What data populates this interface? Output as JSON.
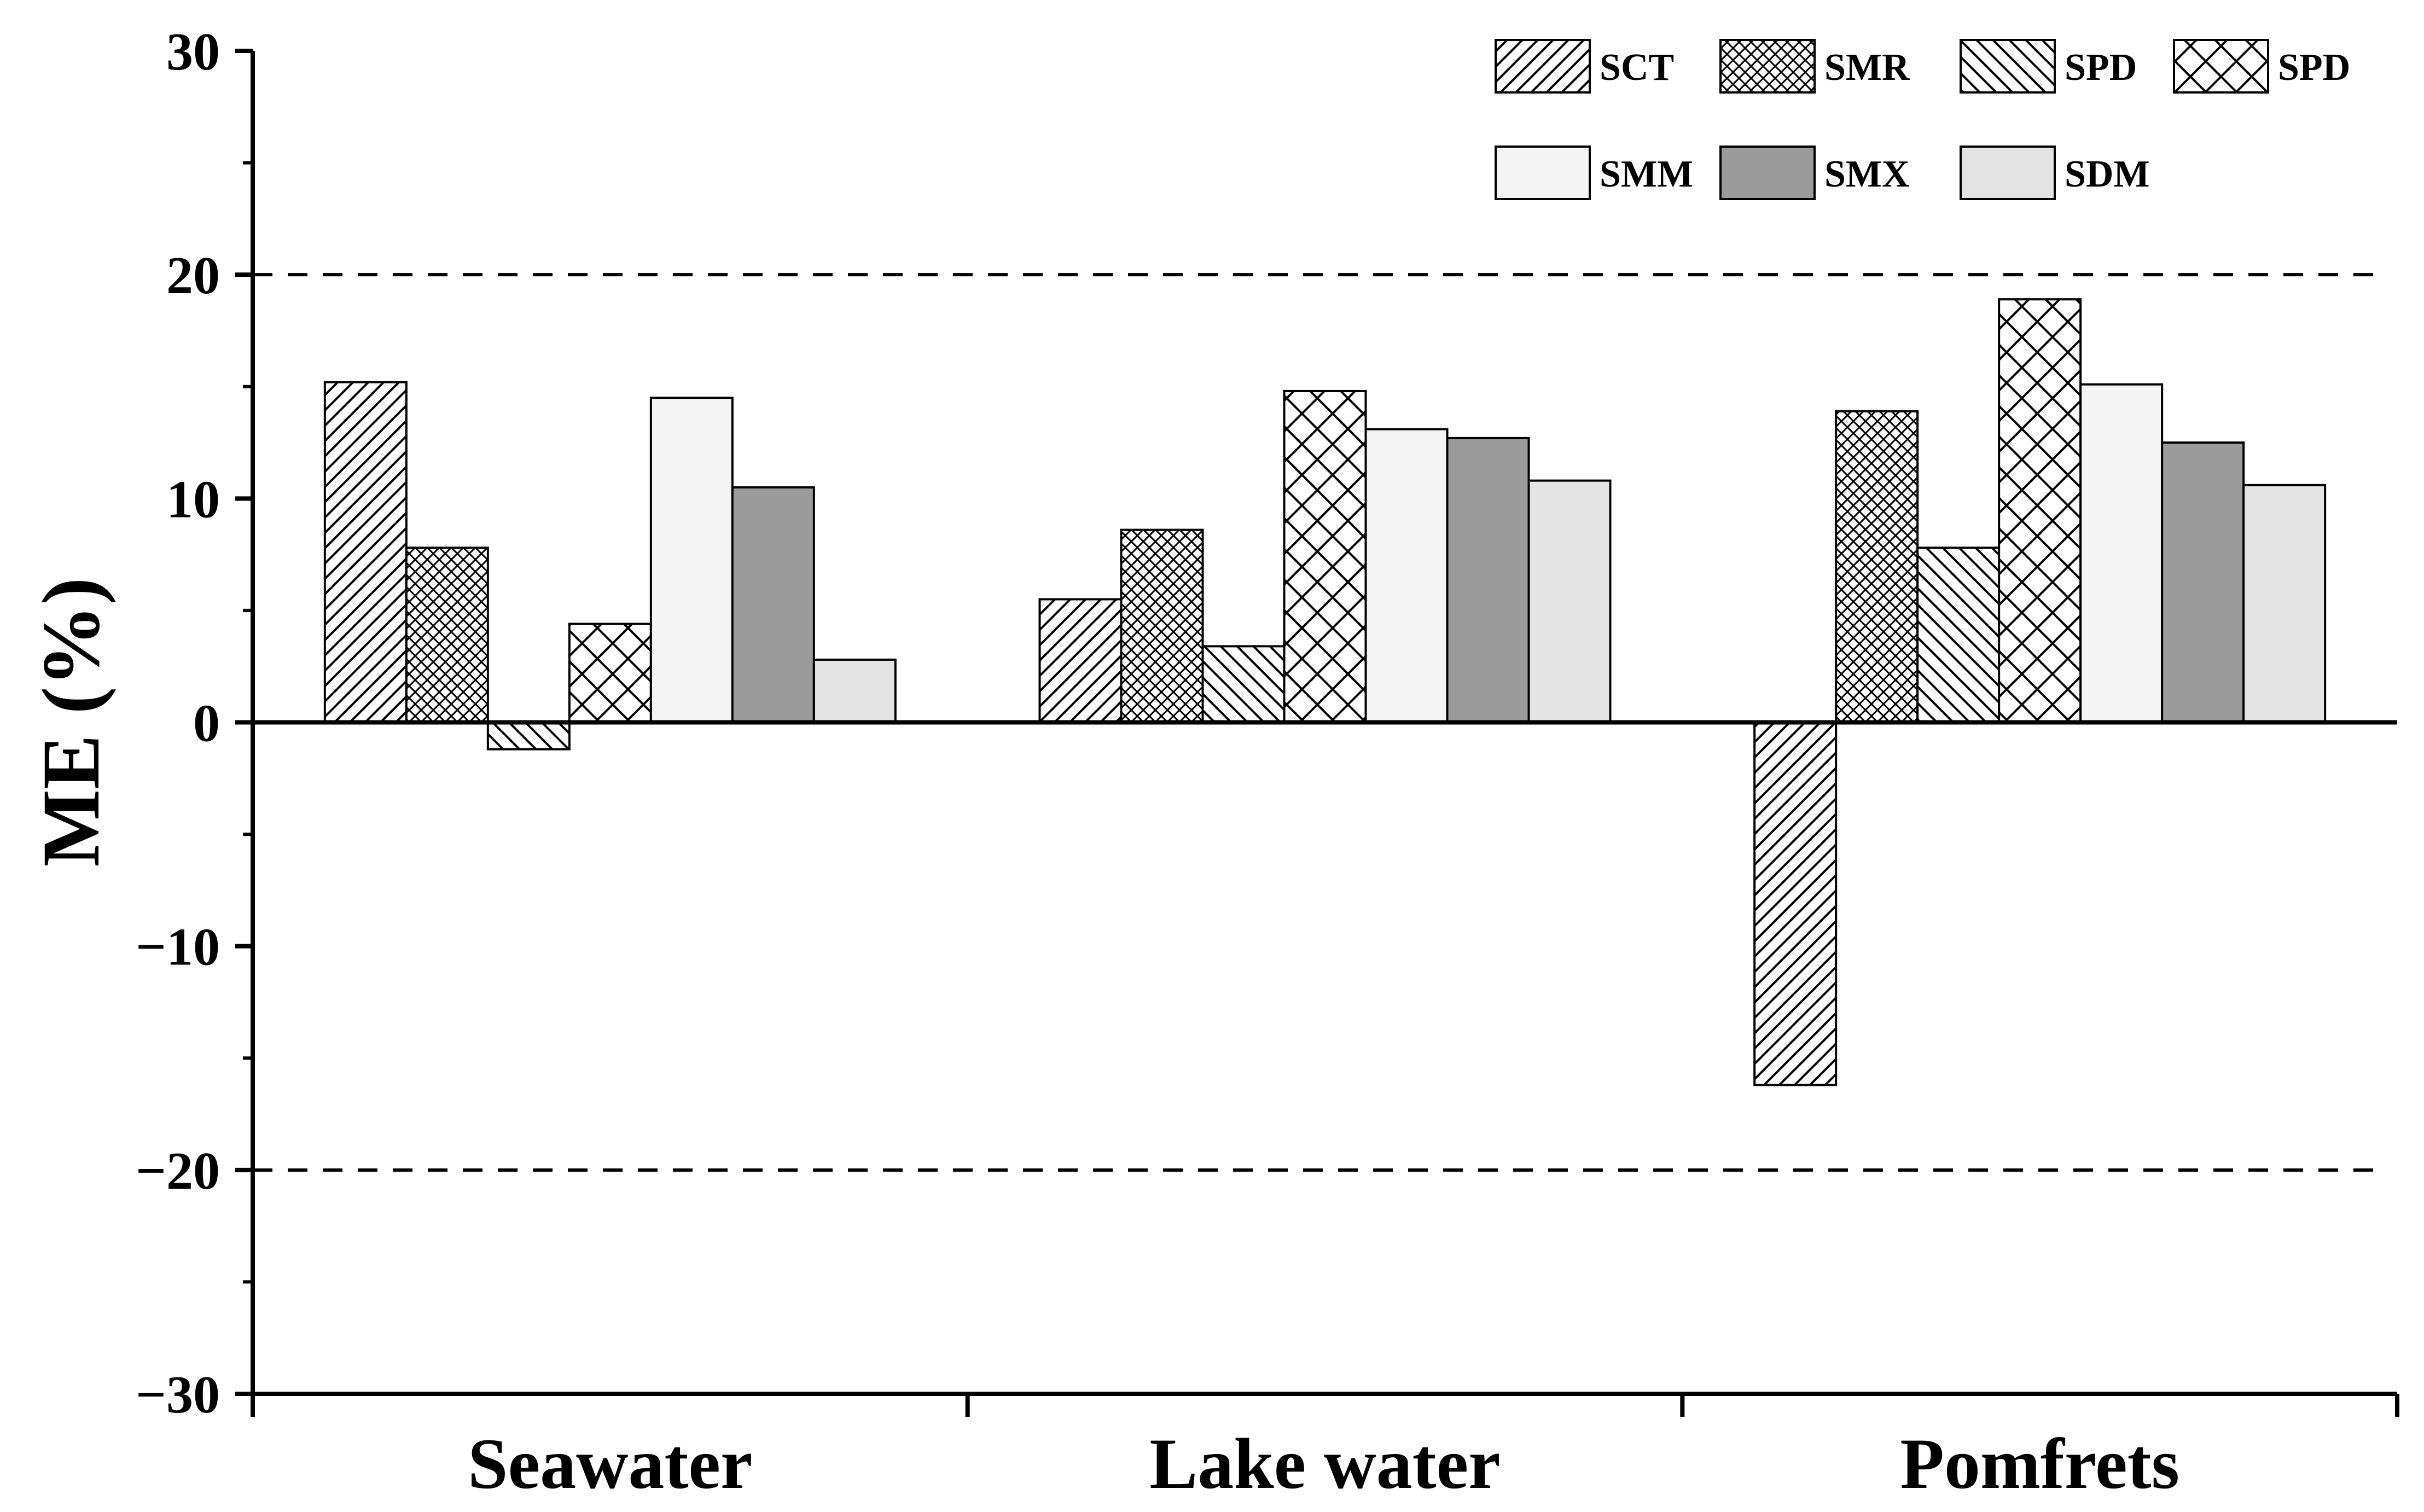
{
  "chart_data": {
    "type": "bar",
    "title": "",
    "xlabel": "",
    "ylabel": "ME (%)",
    "ylim": [
      -30,
      30
    ],
    "yticks": [
      -30,
      -20,
      -10,
      0,
      10,
      20,
      30
    ],
    "ytick_labels": [
      "−30",
      "−20",
      "−10",
      "0",
      "10",
      "20",
      "30"
    ],
    "reference_lines": [
      20,
      -20
    ],
    "categories": [
      "Seawater",
      "Lake water",
      "Pomfrets"
    ],
    "legend_position": "top-right",
    "series": [
      {
        "name": "SCT",
        "pattern": "diag-fwd",
        "color": "#ffffff",
        "values": [
          15.2,
          5.5,
          -16.2
        ]
      },
      {
        "name": "SMR",
        "pattern": "crosshatch-fine",
        "color": "#ffffff",
        "values": [
          7.8,
          8.6,
          13.9
        ]
      },
      {
        "name": "SPD",
        "pattern": "diag-back",
        "color": "#ffffff",
        "values": [
          -1.2,
          3.4,
          7.8
        ]
      },
      {
        "name": "SPD",
        "pattern": "crosshatch-wide",
        "color": "#ffffff",
        "values": [
          4.4,
          14.8,
          18.9
        ]
      },
      {
        "name": "SMM",
        "pattern": "solid",
        "color": "#f4f4f4",
        "values": [
          14.5,
          13.1,
          15.1
        ]
      },
      {
        "name": "SMX",
        "pattern": "solid",
        "color": "#9b9b9b",
        "values": [
          10.5,
          12.7,
          12.5
        ]
      },
      {
        "name": "SDM",
        "pattern": "solid",
        "color": "#e3e3e3",
        "values": [
          2.8,
          10.8,
          10.6
        ]
      }
    ]
  }
}
